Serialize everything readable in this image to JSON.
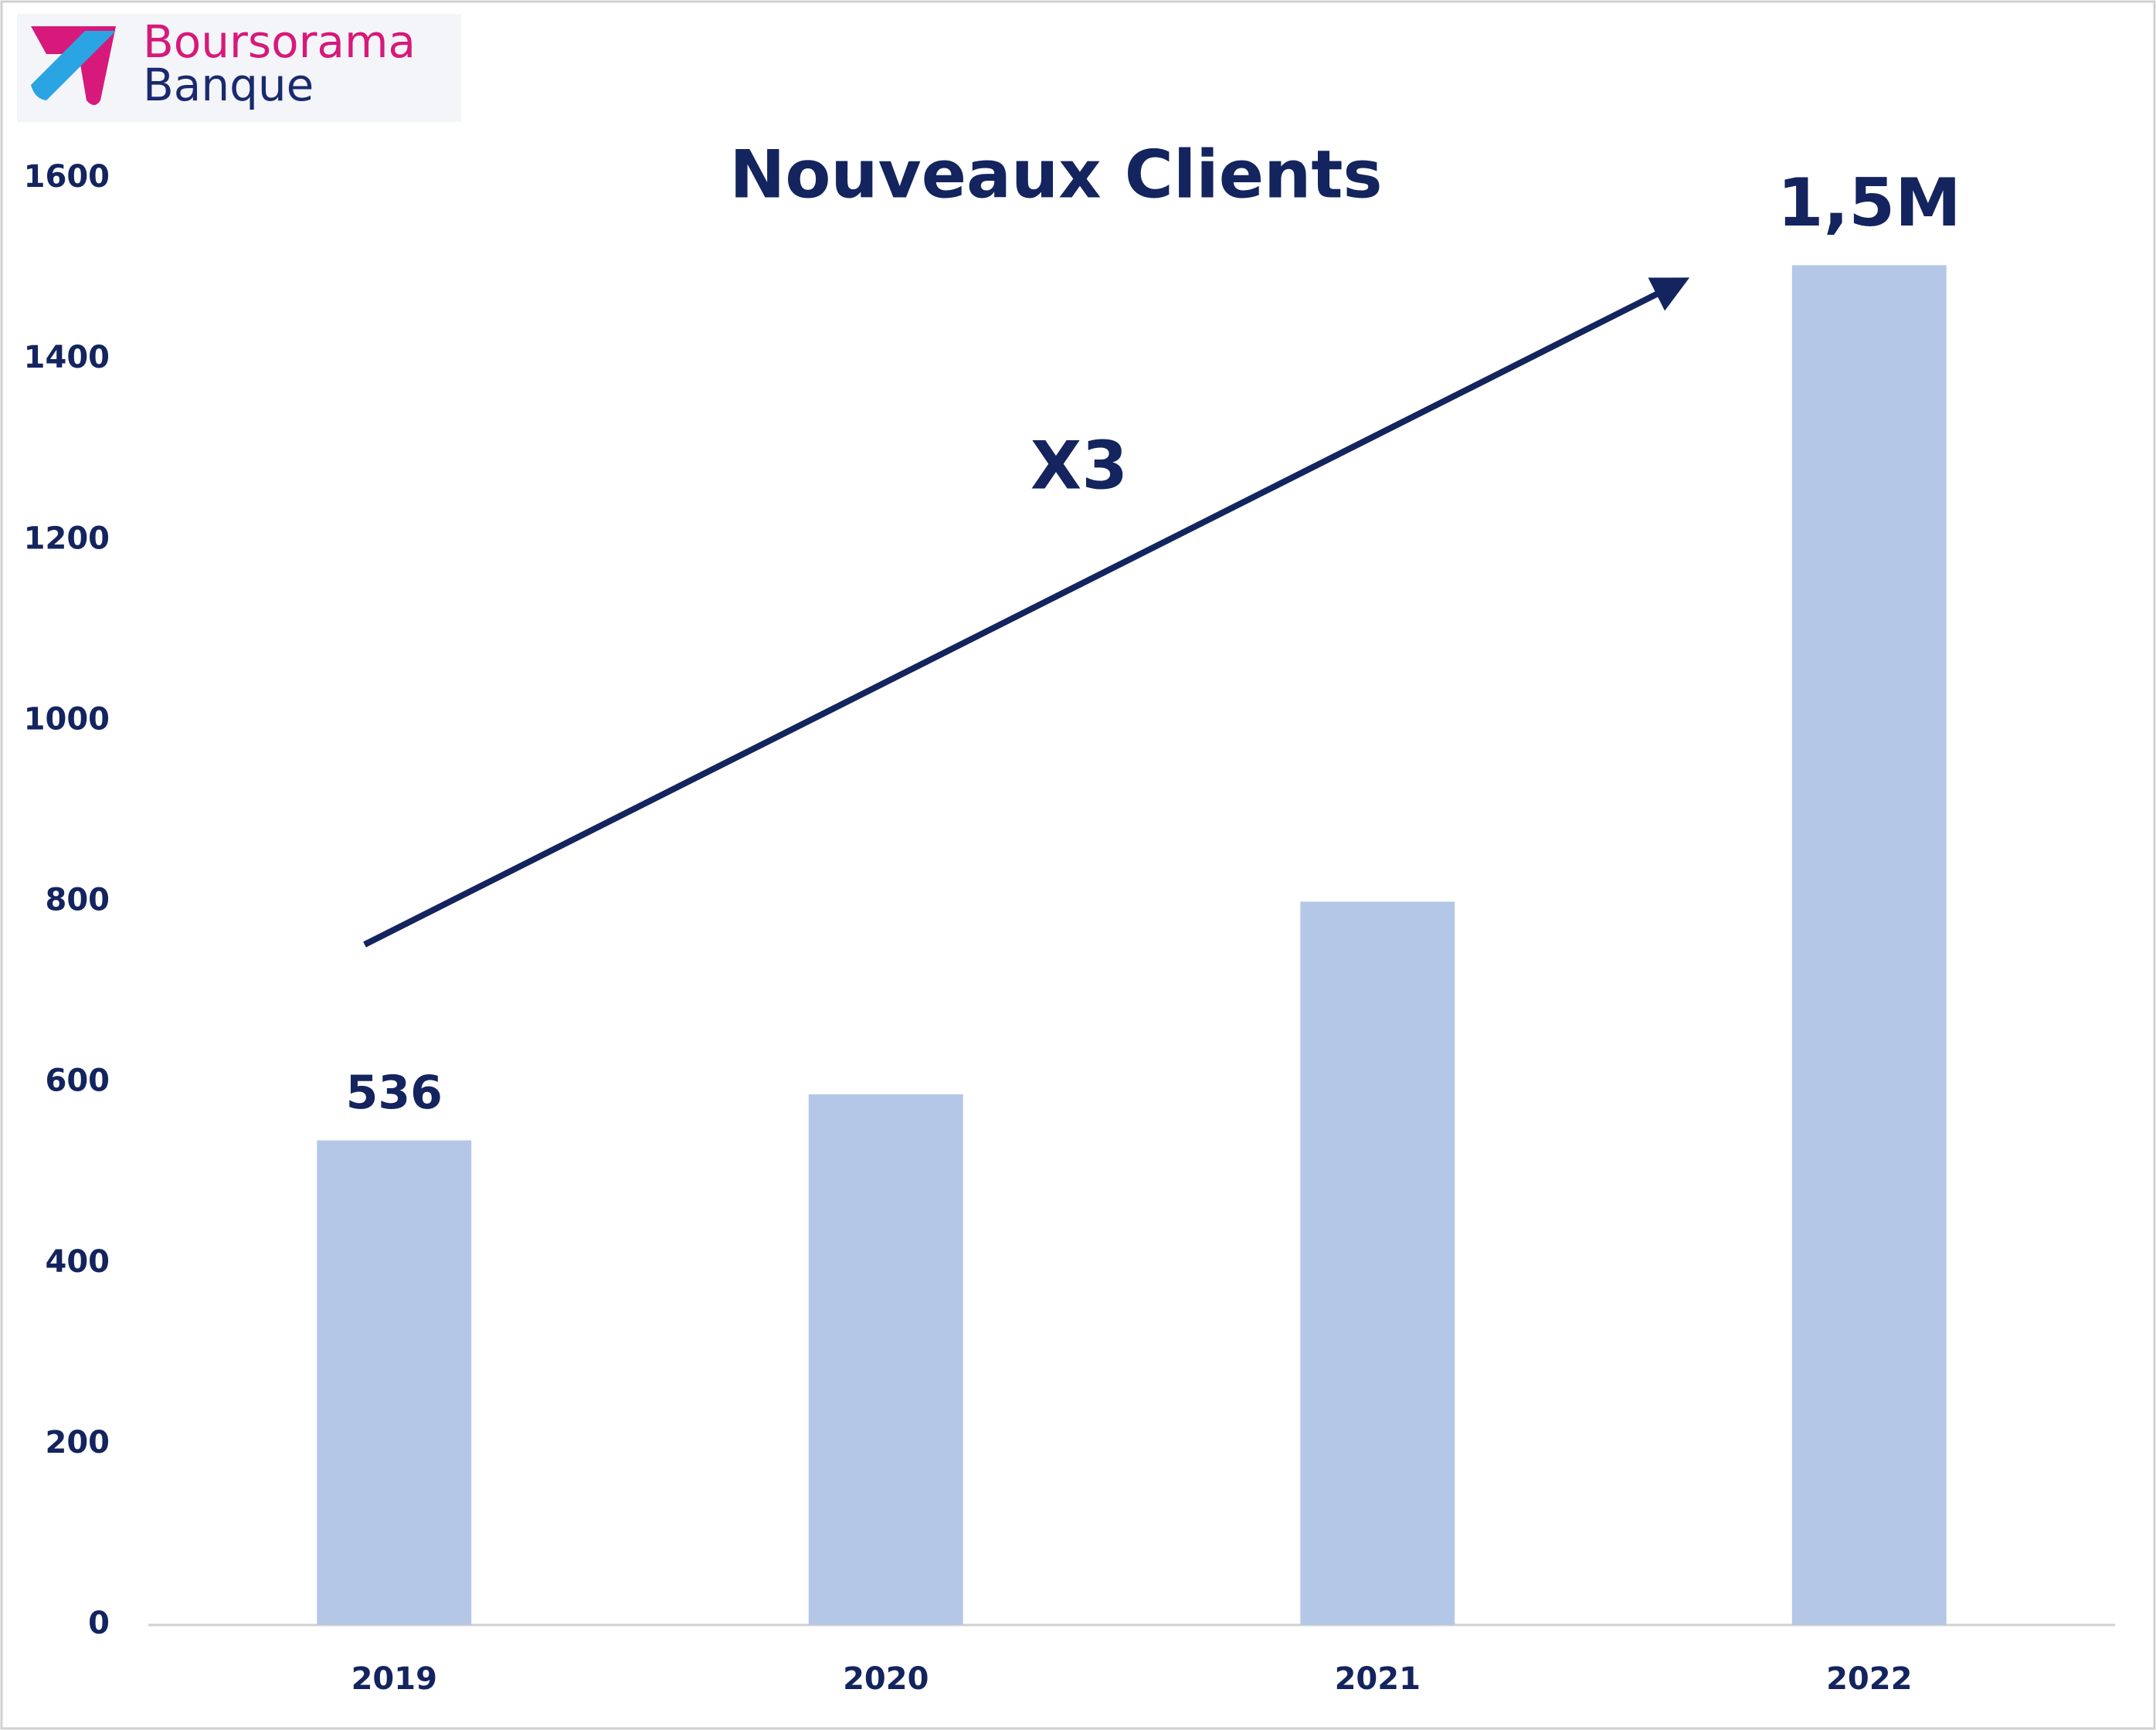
{
  "brand": {
    "line1": "Boursorama",
    "line2": "Banque"
  },
  "chart_data": {
    "type": "bar",
    "title": "Nouveaux Clients",
    "categories": [
      "2019",
      "2020",
      "2021",
      "2022"
    ],
    "values": [
      536,
      587,
      800,
      1504
    ],
    "value_labels": [
      "536",
      null,
      null,
      "1,5M"
    ],
    "color": "#b4c7e7",
    "ylim": [
      0,
      1600
    ],
    "yticks": [
      0,
      200,
      400,
      600,
      800,
      1000,
      1200,
      1400,
      1600
    ],
    "grid": false,
    "annotations": [
      {
        "text": "X3"
      }
    ]
  }
}
